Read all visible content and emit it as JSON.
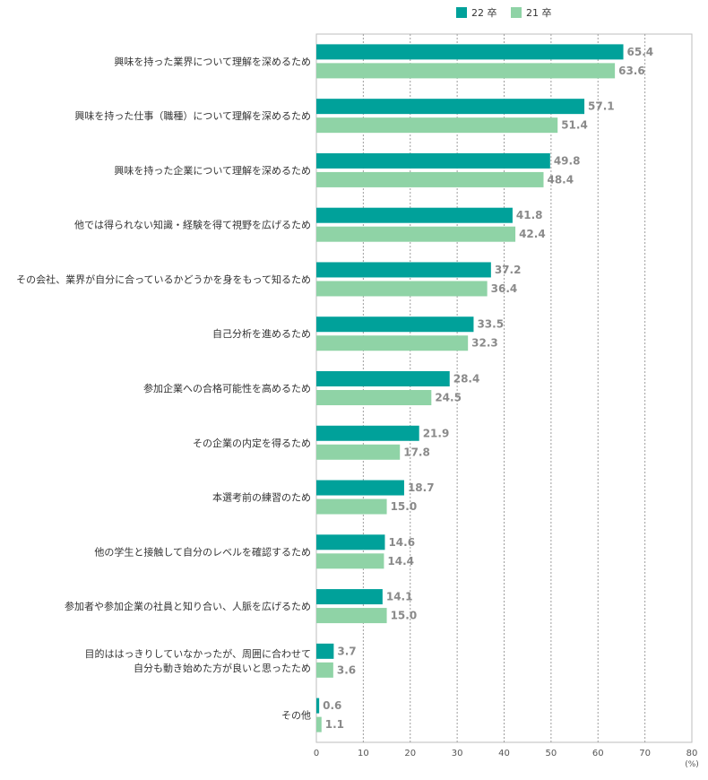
{
  "chart_data": {
    "type": "bar",
    "orientation": "horizontal",
    "categories": [
      [
        "興味を持った業界について理解を深めるため"
      ],
      [
        "興味を持った仕事（職種）について理解を深めるため"
      ],
      [
        "興味を持った企業について理解を深めるため"
      ],
      [
        "他では得られない知識・経験を得て視野を広げるため"
      ],
      [
        "その会社、業界が自分に合っているかどうかを身をもって知るため"
      ],
      [
        "自己分析を進めるため"
      ],
      [
        "参加企業への合格可能性を高めるため"
      ],
      [
        "その企業の内定を得るため"
      ],
      [
        "本選考前の練習のため"
      ],
      [
        "他の学生と接触して自分のレベルを確認するため"
      ],
      [
        "参加者や参加企業の社員と知り合い、人脈を広げるため"
      ],
      [
        "目的ははっきりしていなかったが、周囲に合わせて",
        "自分も動き始めた方が良いと思ったため"
      ],
      [
        "その他"
      ]
    ],
    "series": [
      {
        "name": "22 卒",
        "color": "#00a19a",
        "values": [
          65.4,
          57.1,
          49.8,
          41.8,
          37.2,
          33.5,
          28.4,
          21.9,
          18.7,
          14.6,
          14.1,
          3.7,
          0.6
        ],
        "labels": [
          "65.4",
          "57.1",
          "49.8",
          "41.8",
          "37.2",
          "33.5",
          "28.4",
          "21.9",
          "18.7",
          "14.6",
          "14.1",
          "3.7",
          "0.6"
        ]
      },
      {
        "name": "21 卒",
        "color": "#8fd3a6",
        "values": [
          63.6,
          51.4,
          48.4,
          42.4,
          36.4,
          32.3,
          24.5,
          17.8,
          15.0,
          14.4,
          15.0,
          3.6,
          1.1
        ],
        "labels": [
          "63.6",
          "51.4",
          "48.4",
          "42.4",
          "36.4",
          "32.3",
          "24.5",
          "17.8",
          "15.0",
          "14.4",
          "15.0",
          "3.6",
          "1.1"
        ]
      }
    ],
    "xlim": [
      0,
      80
    ],
    "xticks": [
      0,
      10,
      20,
      30,
      40,
      50,
      60,
      70,
      80
    ],
    "xtick_labels": [
      "0",
      "10",
      "20",
      "30",
      "40",
      "50",
      "60",
      "70",
      "80"
    ],
    "unit": "(%)",
    "grid": true,
    "legend_position": "top-right"
  }
}
